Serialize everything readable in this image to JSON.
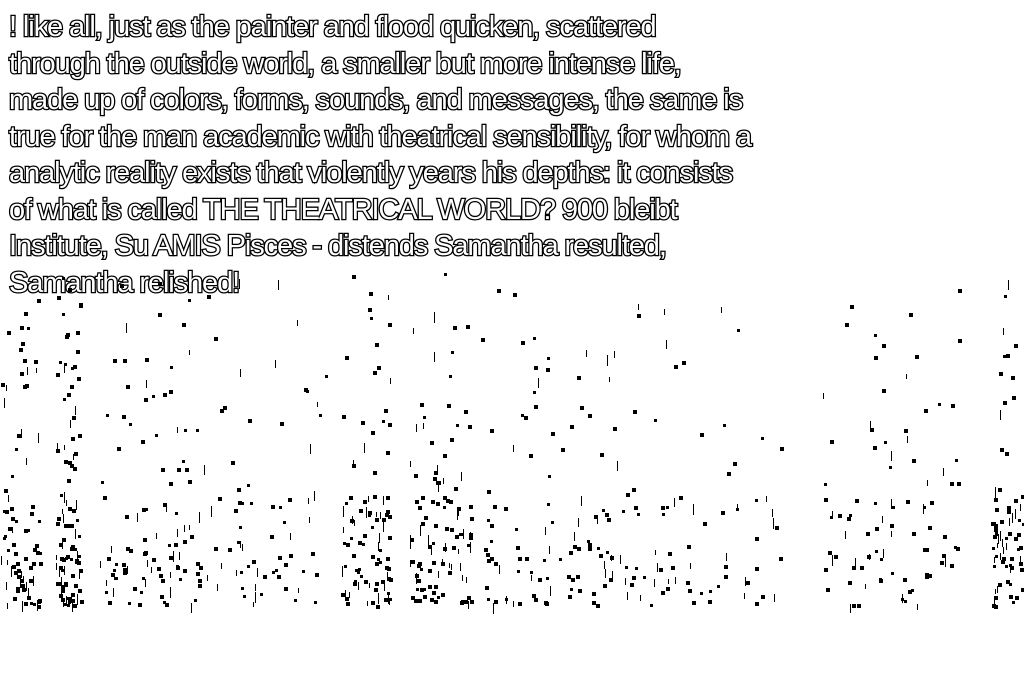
{
  "passage": {
    "lines": [
      "!  like all, just as the painter and flood quicken, scattered",
      "through the outside world, a smaller but more intense life,",
      "made up of colors, forms, sounds, and messages, the same is",
      "true for the man academic with theatrical sensibility, for whom a",
      "analytic reality exists that violently years his depths: it consists",
      "of what is called THE THEATRICAL WORLD?  900 bleibt",
      "Institute, Su AMIS Pisces - distends Samantha resulted,",
      "Samantha relished!"
    ]
  },
  "colors": {
    "background": "#ffffff",
    "text_outline": "#000000",
    "text_fill": "#ffffff",
    "speckle": "#000000"
  }
}
